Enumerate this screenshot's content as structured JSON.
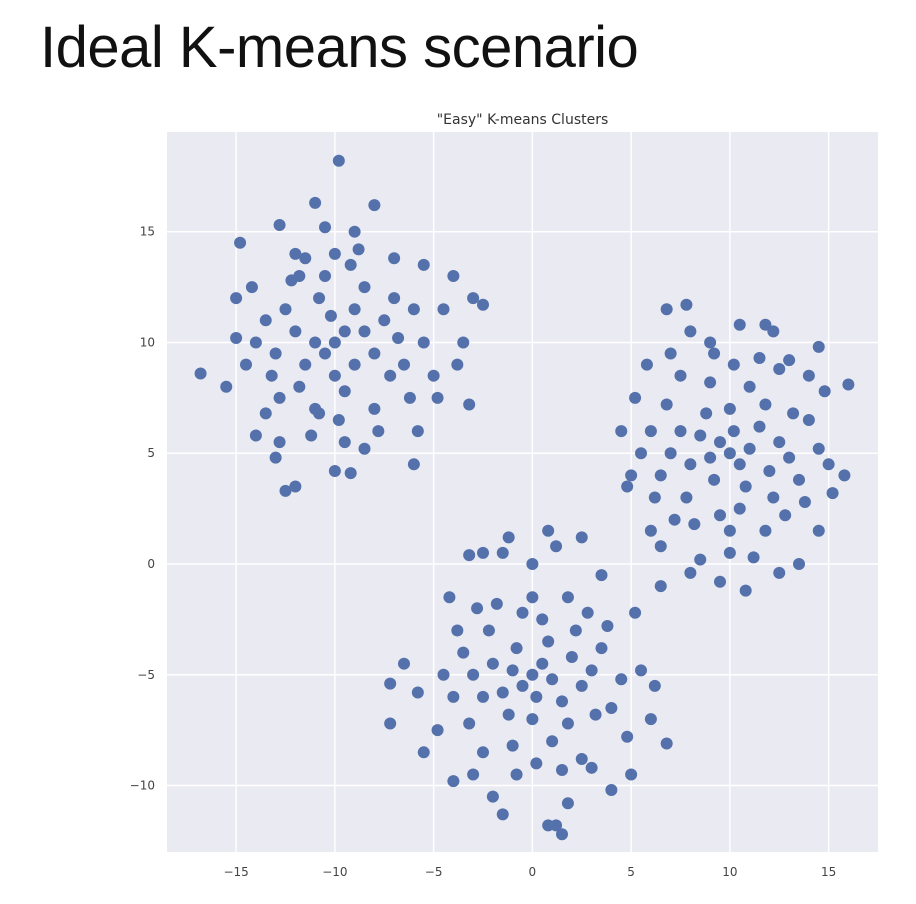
{
  "slide": {
    "title": "Ideal K-means scenario"
  },
  "colors": {
    "point": "#5471ab",
    "background": "#eaeaf2",
    "grid": "#ffffff"
  },
  "chart_data": {
    "type": "scatter",
    "title": "\"Easy\" K-means Clusters",
    "xlabel": "",
    "ylabel": "",
    "xlim": [
      -18.5,
      17.5
    ],
    "ylim": [
      -13,
      19.5
    ],
    "xticks": [
      -15,
      -10,
      -5,
      0,
      5,
      10,
      15
    ],
    "yticks": [
      -10,
      -5,
      0,
      5,
      10,
      15
    ],
    "xtick_labels": [
      "−15",
      "−10",
      "−5",
      "0",
      "5",
      "10",
      "15"
    ],
    "ytick_labels": [
      "−10",
      "−5",
      "0",
      "5",
      "10",
      "15"
    ],
    "grid": true,
    "legend": "none",
    "series": [
      {
        "points": [
          [
            -10,
            10
          ],
          [
            -10.5,
            9.5
          ],
          [
            -9.5,
            10.5
          ],
          [
            -11,
            10
          ],
          [
            -9,
            9
          ],
          [
            -10.2,
            11.2
          ],
          [
            -11.5,
            9
          ],
          [
            -8.5,
            10.5
          ],
          [
            -10,
            8.5
          ],
          [
            -12,
            10.5
          ],
          [
            -9,
            11.5
          ],
          [
            -10.8,
            12
          ],
          [
            -8,
            9.5
          ],
          [
            -11.8,
            8
          ],
          [
            -9.5,
            7.8
          ],
          [
            -12.5,
            11.5
          ],
          [
            -7.5,
            11
          ],
          [
            -10.5,
            13
          ],
          [
            -13,
            9.5
          ],
          [
            -8.5,
            12.5
          ],
          [
            -11,
            7
          ],
          [
            -9.2,
            13.5
          ],
          [
            -12.8,
            7.5
          ],
          [
            -7.2,
            8.5
          ],
          [
            -13.5,
            11
          ],
          [
            -10,
            14
          ],
          [
            -6.8,
            10.2
          ],
          [
            -11.5,
            13.8
          ],
          [
            -8,
            7
          ],
          [
            -13.2,
            8.5
          ],
          [
            -9.8,
            6.5
          ],
          [
            -12.2,
            12.8
          ],
          [
            -7,
            12
          ],
          [
            -10.8,
            6.8
          ],
          [
            -8.8,
            14.2
          ],
          [
            -14,
            10
          ],
          [
            -6.5,
            9
          ],
          [
            -11.2,
            5.8
          ],
          [
            -12,
            14
          ],
          [
            -9,
            15
          ],
          [
            -14.5,
            9
          ],
          [
            -6,
            11.5
          ],
          [
            -7.8,
            6
          ],
          [
            -13.5,
            6.8
          ],
          [
            -10.5,
            15.2
          ],
          [
            -5.5,
            10
          ],
          [
            -9.5,
            5.5
          ],
          [
            -15,
            10.2
          ],
          [
            -8.5,
            5.2
          ],
          [
            -12.8,
            5.5
          ],
          [
            -11,
            16.3
          ],
          [
            -6.2,
            7.5
          ],
          [
            -14.2,
            12.5
          ],
          [
            -7,
            13.8
          ],
          [
            -9.8,
            18.2
          ],
          [
            -16.8,
            8.6
          ],
          [
            -15.5,
            8
          ],
          [
            -4.5,
            11.5
          ],
          [
            -5,
            8.5
          ],
          [
            -12,
            3.5
          ],
          [
            -12.5,
            3.3
          ],
          [
            -10,
            4.2
          ],
          [
            -9.2,
            4.1
          ],
          [
            -6,
            4.5
          ],
          [
            -4.8,
            7.5
          ],
          [
            -3.5,
            10
          ],
          [
            -3,
            12
          ],
          [
            -4,
            13
          ],
          [
            -5.5,
            13.5
          ],
          [
            -8,
            16.2
          ],
          [
            -12.8,
            15.3
          ],
          [
            -14.8,
            14.5
          ],
          [
            -15,
            12
          ],
          [
            -14,
            5.8
          ],
          [
            -13,
            4.8
          ],
          [
            -2.5,
            11.7
          ],
          [
            -3.2,
            7.2
          ],
          [
            -3.8,
            9
          ],
          [
            -5.8,
            6
          ],
          [
            -11.8,
            13
          ]
        ]
      },
      {
        "points": [
          [
            0,
            -5
          ],
          [
            -0.5,
            -5.5
          ],
          [
            0.5,
            -4.5
          ],
          [
            1,
            -5.2
          ],
          [
            -1,
            -4.8
          ],
          [
            0.2,
            -6
          ],
          [
            -0.8,
            -3.8
          ],
          [
            1.5,
            -6.2
          ],
          [
            -1.5,
            -5.8
          ],
          [
            0.8,
            -3.5
          ],
          [
            -2,
            -4.5
          ],
          [
            2,
            -4.2
          ],
          [
            0,
            -7
          ],
          [
            -1.2,
            -6.8
          ],
          [
            1.8,
            -7.2
          ],
          [
            -2.5,
            -6
          ],
          [
            2.5,
            -5.5
          ],
          [
            0.5,
            -2.5
          ],
          [
            -0.5,
            -2.2
          ],
          [
            -2.2,
            -3
          ],
          [
            2.2,
            -3
          ],
          [
            1,
            -8
          ],
          [
            -1,
            -8.2
          ],
          [
            -3,
            -5
          ],
          [
            3,
            -4.8
          ],
          [
            0,
            -1.5
          ],
          [
            -3.2,
            -7.2
          ],
          [
            3.2,
            -6.8
          ],
          [
            -1.8,
            -1.8
          ],
          [
            1.8,
            -1.5
          ],
          [
            0.2,
            -9
          ],
          [
            -2.8,
            -2
          ],
          [
            2.8,
            -2.2
          ],
          [
            -3.5,
            -4
          ],
          [
            3.5,
            -3.8
          ],
          [
            -0.8,
            -9.5
          ],
          [
            1.5,
            -9.3
          ],
          [
            -4,
            -6
          ],
          [
            4,
            -6.5
          ],
          [
            0,
            0
          ],
          [
            -2.5,
            -8.5
          ],
          [
            2.5,
            -8.8
          ],
          [
            -3.8,
            -3
          ],
          [
            3.8,
            -2.8
          ],
          [
            -1.5,
            0.5
          ],
          [
            1.2,
            0.8
          ],
          [
            -4.5,
            -5
          ],
          [
            4.5,
            -5.2
          ],
          [
            -3,
            -9.5
          ],
          [
            3,
            -9.2
          ],
          [
            -4.8,
            -7.5
          ],
          [
            4.8,
            -7.8
          ],
          [
            -2,
            -10.5
          ],
          [
            1.8,
            -10.8
          ],
          [
            0.8,
            -11.8
          ],
          [
            1.2,
            -11.8
          ],
          [
            -1.5,
            -11.3
          ],
          [
            -7.2,
            -7.2
          ],
          [
            -7.2,
            -5.4
          ],
          [
            -5.8,
            -5.8
          ],
          [
            5.5,
            -4.8
          ],
          [
            6,
            -7
          ],
          [
            6.8,
            -8.1
          ],
          [
            5,
            -9.5
          ],
          [
            4,
            -10.2
          ],
          [
            -2.5,
            0.5
          ],
          [
            -3.2,
            0.4
          ],
          [
            -1.2,
            1.2
          ],
          [
            0.8,
            1.5
          ],
          [
            2.5,
            1.2
          ],
          [
            3.5,
            -0.5
          ],
          [
            1.5,
            -12.2
          ],
          [
            -4.2,
            -1.5
          ],
          [
            5.2,
            -2.2
          ],
          [
            6.2,
            -5.5
          ],
          [
            -5.5,
            -8.5
          ],
          [
            -6.5,
            -4.5
          ],
          [
            -4,
            -9.8
          ]
        ]
      },
      {
        "points": [
          [
            10,
            5
          ],
          [
            9.5,
            5.5
          ],
          [
            10.5,
            4.5
          ],
          [
            11,
            5.2
          ],
          [
            9,
            4.8
          ],
          [
            10.2,
            6
          ],
          [
            9.2,
            3.8
          ],
          [
            11.5,
            6.2
          ],
          [
            8.5,
            5.8
          ],
          [
            10.8,
            3.5
          ],
          [
            8,
            4.5
          ],
          [
            12,
            4.2
          ],
          [
            10,
            7
          ],
          [
            8.8,
            6.8
          ],
          [
            11.8,
            7.2
          ],
          [
            7.5,
            6
          ],
          [
            12.5,
            5.5
          ],
          [
            10.5,
            2.5
          ],
          [
            9.5,
            2.2
          ],
          [
            7.8,
            3
          ],
          [
            12.2,
            3
          ],
          [
            11,
            8
          ],
          [
            9,
            8.2
          ],
          [
            7,
            5
          ],
          [
            13,
            4.8
          ],
          [
            10,
            1.5
          ],
          [
            6.8,
            7.2
          ],
          [
            13.2,
            6.8
          ],
          [
            8.2,
            1.8
          ],
          [
            11.8,
            1.5
          ],
          [
            10.2,
            9
          ],
          [
            7.2,
            2
          ],
          [
            12.8,
            2.2
          ],
          [
            6.5,
            4
          ],
          [
            13.5,
            3.8
          ],
          [
            9.2,
            9.5
          ],
          [
            11.5,
            9.3
          ],
          [
            6,
            6
          ],
          [
            14,
            6.5
          ],
          [
            10,
            0.5
          ],
          [
            7.5,
            8.5
          ],
          [
            12.5,
            8.8
          ],
          [
            6.2,
            3
          ],
          [
            13.8,
            2.8
          ],
          [
            8.5,
            0.2
          ],
          [
            11.2,
            0.3
          ],
          [
            5.5,
            5
          ],
          [
            14.5,
            5.2
          ],
          [
            7,
            9.5
          ],
          [
            13,
            9.2
          ],
          [
            5.2,
            7.5
          ],
          [
            14.8,
            7.8
          ],
          [
            8,
            10.5
          ],
          [
            11.8,
            10.8
          ],
          [
            10.5,
            10.8
          ],
          [
            6.8,
            11.5
          ],
          [
            7.8,
            11.7
          ],
          [
            16,
            8.1
          ],
          [
            15.8,
            4
          ],
          [
            15.2,
            3.2
          ],
          [
            13.5,
            0
          ],
          [
            12.5,
            -0.4
          ],
          [
            10.8,
            -1.2
          ],
          [
            9.5,
            -0.8
          ],
          [
            8,
            -0.4
          ],
          [
            6.5,
            -1
          ],
          [
            5,
            4
          ],
          [
            4.5,
            6
          ],
          [
            5.8,
            9
          ],
          [
            14.5,
            9.8
          ],
          [
            14.5,
            1.5
          ],
          [
            15,
            4.5
          ],
          [
            6.5,
            0.8
          ],
          [
            12.2,
            10.5
          ],
          [
            9,
            10
          ],
          [
            4.8,
            3.5
          ],
          [
            6,
            1.5
          ],
          [
            14,
            8.5
          ]
        ]
      }
    ]
  }
}
